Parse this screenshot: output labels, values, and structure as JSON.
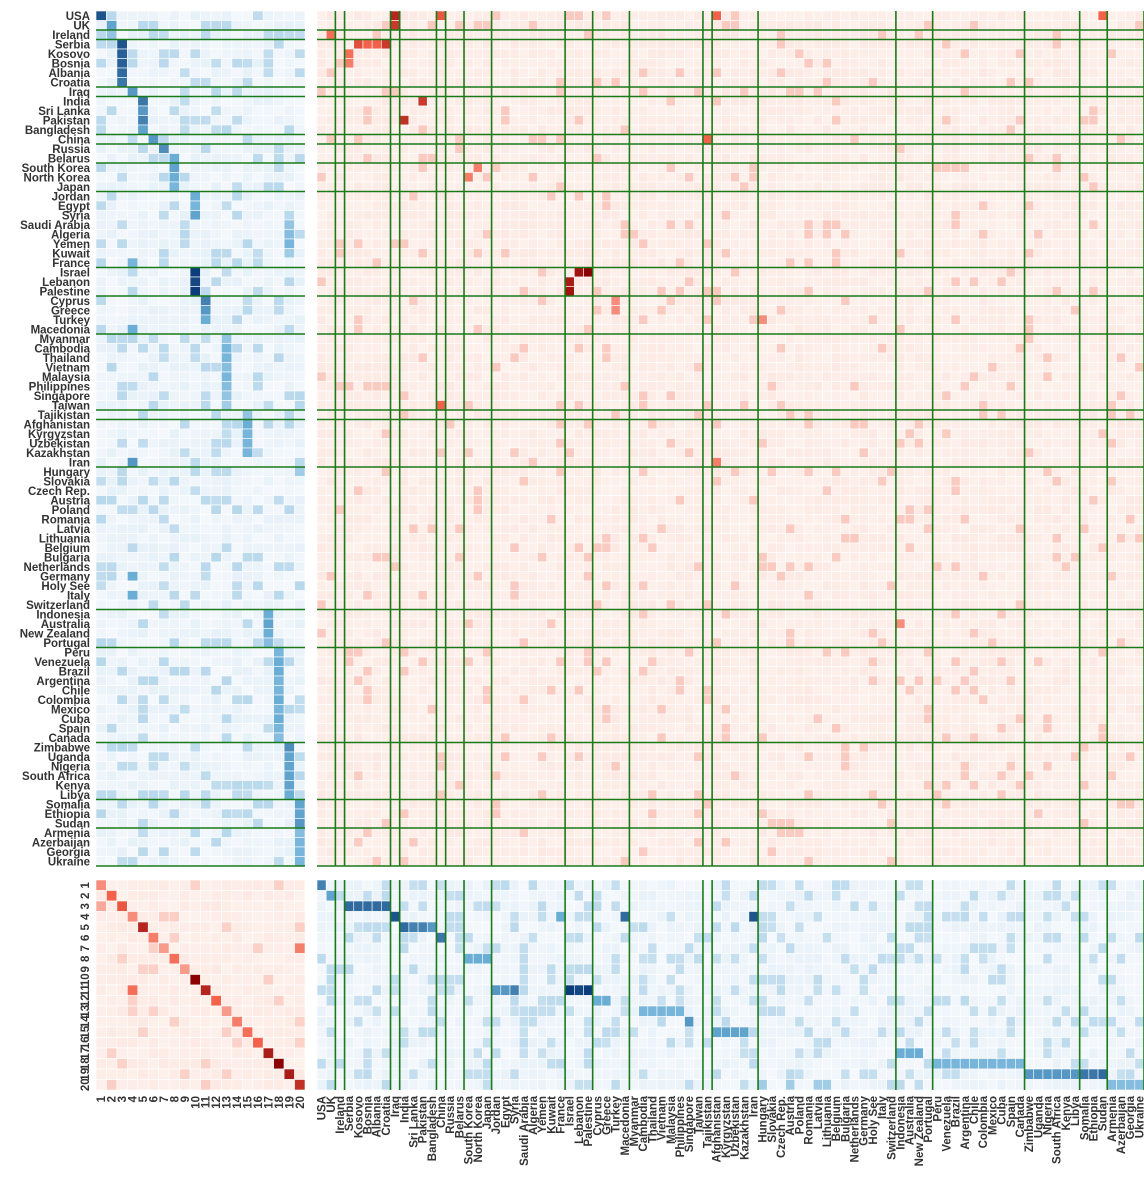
{
  "chart_data": {
    "type": "heatmap",
    "title": "",
    "countries": [
      "USA",
      "UK",
      "Ireland",
      "Serbia",
      "Kosovo",
      "Bosnia",
      "Albania",
      "Croatia",
      "Iraq",
      "India",
      "Sri Lanka",
      "Pakistan",
      "Bangladesh",
      "China",
      "Russia",
      "Belarus",
      "South Korea",
      "North Korea",
      "Japan",
      "Jordan",
      "Egypt",
      "Syria",
      "Saudi Arabia",
      "Algeria",
      "Yemen",
      "Kuwait",
      "France",
      "Israel",
      "Lebanon",
      "Palestine",
      "Cyprus",
      "Greece",
      "Turkey",
      "Macedonia",
      "Myanmar",
      "Cambodia",
      "Thailand",
      "Vietnam",
      "Malaysia",
      "Philippines",
      "Singapore",
      "Taiwan",
      "Tajikistan",
      "Afghanistan",
      "Kyrgyzstan",
      "Uzbekistan",
      "Kazakhstan",
      "Iran",
      "Hungary",
      "Slovakia",
      "Czech Rep.",
      "Austria",
      "Poland",
      "Romania",
      "Latvia",
      "Lithuania",
      "Belgium",
      "Bulgaria",
      "Netherlands",
      "Germany",
      "Holy See",
      "Italy",
      "Switzerland",
      "Indonesia",
      "Australia",
      "New Zealand",
      "Portugal",
      "Peru",
      "Venezuela",
      "Brazil",
      "Argentina",
      "Chile",
      "Colombia",
      "Mexico",
      "Cuba",
      "Spain",
      "Canada",
      "Zimbabwe",
      "Uganda",
      "Nigeria",
      "South Africa",
      "Kenya",
      "Libya",
      "Somalia",
      "Ethiopia",
      "Sudan",
      "Armenia",
      "Azerbaijan",
      "Georgia",
      "Ukraine"
    ],
    "topics": [
      "1",
      "2",
      "3",
      "4",
      "5",
      "6",
      "7",
      "8",
      "9",
      "10",
      "11",
      "12",
      "13",
      "14",
      "15",
      "16",
      "17",
      "18",
      "19",
      "20"
    ],
    "group_boundaries": [
      2,
      3,
      8,
      9,
      13,
      14,
      16,
      19,
      27,
      30,
      34,
      42,
      43,
      48,
      63,
      67,
      77,
      83,
      86,
      90
    ],
    "country_topic": [
      {
        "row": "USA",
        "col": "1",
        "value": 0.9
      },
      {
        "row": "UK",
        "col": "2",
        "value": 0.55
      },
      {
        "row": "Ireland",
        "col": "2",
        "value": 0.35
      },
      {
        "row": "Serbia",
        "col": "3",
        "value": 0.9
      },
      {
        "row": "Kosovo",
        "col": "3",
        "value": 0.85
      },
      {
        "row": "Bosnia",
        "col": "3",
        "value": 0.85
      },
      {
        "row": "Albania",
        "col": "3",
        "value": 0.8
      },
      {
        "row": "Croatia",
        "col": "3",
        "value": 0.75
      },
      {
        "row": "Iraq",
        "col": "4",
        "value": 0.6
      },
      {
        "row": "India",
        "col": "5",
        "value": 0.75
      },
      {
        "row": "Sri Lanka",
        "col": "5",
        "value": 0.6
      },
      {
        "row": "Pakistan",
        "col": "5",
        "value": 0.7
      },
      {
        "row": "Bangladesh",
        "col": "5",
        "value": 0.55
      },
      {
        "row": "China",
        "col": "6",
        "value": 0.6
      },
      {
        "row": "Russia",
        "col": "7",
        "value": 0.65
      },
      {
        "row": "Belarus",
        "col": "8",
        "value": 0.5
      },
      {
        "row": "South Korea",
        "col": "8",
        "value": 0.55
      },
      {
        "row": "North Korea",
        "col": "8",
        "value": 0.5
      },
      {
        "row": "Japan",
        "col": "8",
        "value": 0.45
      },
      {
        "row": "Jordan",
        "col": "10",
        "value": 0.5
      },
      {
        "row": "Egypt",
        "col": "10",
        "value": 0.45
      },
      {
        "row": "Syria",
        "col": "10",
        "value": 0.55
      },
      {
        "row": "Saudi Arabia",
        "col": "19",
        "value": 0.35
      },
      {
        "row": "Algeria",
        "col": "19",
        "value": 0.4
      },
      {
        "row": "Yemen",
        "col": "19",
        "value": 0.45
      },
      {
        "row": "Kuwait",
        "col": "19",
        "value": 0.3
      },
      {
        "row": "France",
        "col": "4",
        "value": 0.45
      },
      {
        "row": "Israel",
        "col": "10",
        "value": 1.0
      },
      {
        "row": "Lebanon",
        "col": "10",
        "value": 0.95
      },
      {
        "row": "Palestine",
        "col": "10",
        "value": 1.0
      },
      {
        "row": "Cyprus",
        "col": "11",
        "value": 0.7
      },
      {
        "row": "Greece",
        "col": "11",
        "value": 0.6
      },
      {
        "row": "Turkey",
        "col": "11",
        "value": 0.5
      },
      {
        "row": "Macedonia",
        "col": "4",
        "value": 0.5
      },
      {
        "row": "Myanmar",
        "col": "13",
        "value": 0.35
      },
      {
        "row": "Cambodia",
        "col": "13",
        "value": 0.45
      },
      {
        "row": "Thailand",
        "col": "13",
        "value": 0.45
      },
      {
        "row": "Vietnam",
        "col": "13",
        "value": 0.4
      },
      {
        "row": "Malaysia",
        "col": "13",
        "value": 0.45
      },
      {
        "row": "Philippines",
        "col": "13",
        "value": 0.4
      },
      {
        "row": "Singapore",
        "col": "13",
        "value": 0.35
      },
      {
        "row": "Taiwan",
        "col": "13",
        "value": 0.3
      },
      {
        "row": "Tajikistan",
        "col": "15",
        "value": 0.35
      },
      {
        "row": "Afghanistan",
        "col": "15",
        "value": 0.5
      },
      {
        "row": "Kyrgyzstan",
        "col": "15",
        "value": 0.45
      },
      {
        "row": "Uzbekistan",
        "col": "15",
        "value": 0.45
      },
      {
        "row": "Kazakhstan",
        "col": "15",
        "value": 0.45
      },
      {
        "row": "Iran",
        "col": "4",
        "value": 0.6
      },
      {
        "row": "Hungary",
        "col": "20",
        "value": 0.3
      },
      {
        "row": "Germany",
        "col": "4",
        "value": 0.5
      },
      {
        "row": "Italy",
        "col": "4",
        "value": 0.5
      },
      {
        "row": "Indonesia",
        "col": "17",
        "value": 0.5
      },
      {
        "row": "Australia",
        "col": "17",
        "value": 0.55
      },
      {
        "row": "New Zealand",
        "col": "17",
        "value": 0.5
      },
      {
        "row": "Portugal",
        "col": "17",
        "value": 0.4
      },
      {
        "row": "Peru",
        "col": "18",
        "value": 0.45
      },
      {
        "row": "Venezuela",
        "col": "18",
        "value": 0.5
      },
      {
        "row": "Brazil",
        "col": "18",
        "value": 0.5
      },
      {
        "row": "Argentina",
        "col": "18",
        "value": 0.45
      },
      {
        "row": "Chile",
        "col": "18",
        "value": 0.45
      },
      {
        "row": "Colombia",
        "col": "18",
        "value": 0.5
      },
      {
        "row": "Mexico",
        "col": "18",
        "value": 0.45
      },
      {
        "row": "Cuba",
        "col": "18",
        "value": 0.5
      },
      {
        "row": "Spain",
        "col": "18",
        "value": 0.45
      },
      {
        "row": "Canada",
        "col": "18",
        "value": 0.4
      },
      {
        "row": "Zimbabwe",
        "col": "19",
        "value": 0.65
      },
      {
        "row": "Uganda",
        "col": "19",
        "value": 0.55
      },
      {
        "row": "Nigeria",
        "col": "19",
        "value": 0.55
      },
      {
        "row": "South Africa",
        "col": "19",
        "value": 0.55
      },
      {
        "row": "Kenya",
        "col": "19",
        "value": 0.55
      },
      {
        "row": "Libya",
        "col": "19",
        "value": 0.5
      },
      {
        "row": "Somalia",
        "col": "20",
        "value": 0.55
      },
      {
        "row": "Ethiopia",
        "col": "20",
        "value": 0.55
      },
      {
        "row": "Sudan",
        "col": "20",
        "value": 0.6
      },
      {
        "row": "Armenia",
        "col": "20",
        "value": 0.4
      },
      {
        "row": "Azerbaijan",
        "col": "20",
        "value": 0.45
      },
      {
        "row": "Georgia",
        "col": "20",
        "value": 0.45
      },
      {
        "row": "Ukraine",
        "col": "20",
        "value": 0.45
      }
    ],
    "country_country": [
      {
        "row": "USA",
        "col": "Iraq",
        "value": 0.8
      },
      {
        "row": "USA",
        "col": "China",
        "value": 0.55
      },
      {
        "row": "USA",
        "col": "Afghanistan",
        "value": 0.5
      },
      {
        "row": "USA",
        "col": "Sudan",
        "value": 0.5
      },
      {
        "row": "UK",
        "col": "Iraq",
        "value": 0.7
      },
      {
        "row": "Ireland",
        "col": "UK",
        "value": 0.45
      },
      {
        "row": "Serbia",
        "col": "Kosovo",
        "value": 0.6
      },
      {
        "row": "Serbia",
        "col": "Bosnia",
        "value": 0.5
      },
      {
        "row": "Serbia",
        "col": "Albania",
        "value": 0.5
      },
      {
        "row": "Serbia",
        "col": "Croatia",
        "value": 0.7
      },
      {
        "row": "Kosovo",
        "col": "Serbia",
        "value": 0.45
      },
      {
        "row": "Bosnia",
        "col": "Serbia",
        "value": 0.4
      },
      {
        "row": "India",
        "col": "Pakistan",
        "value": 0.7
      },
      {
        "row": "Pakistan",
        "col": "India",
        "value": 0.75
      },
      {
        "row": "China",
        "col": "Tajikistan",
        "value": 0.5
      },
      {
        "row": "Taiwan",
        "col": "China",
        "value": 0.5
      },
      {
        "row": "South Korea",
        "col": "North Korea",
        "value": 0.4
      },
      {
        "row": "North Korea",
        "col": "South Korea",
        "value": 0.4
      },
      {
        "row": "Israel",
        "col": "Lebanon",
        "value": 0.9
      },
      {
        "row": "Israel",
        "col": "Palestine",
        "value": 1.0
      },
      {
        "row": "Lebanon",
        "col": "Israel",
        "value": 0.85
      },
      {
        "row": "Palestine",
        "col": "Israel",
        "value": 0.9
      },
      {
        "row": "Cyprus",
        "col": "Turkey",
        "value": 0.35
      },
      {
        "row": "Greece",
        "col": "Turkey",
        "value": 0.35
      },
      {
        "row": "Turkey",
        "col": "Hungary",
        "value": 0.35
      },
      {
        "row": "Iran",
        "col": "Afghanistan",
        "value": 0.4
      },
      {
        "row": "Australia",
        "col": "Indonesia",
        "value": 0.35
      }
    ],
    "topic_topic": [
      {
        "row": "1",
        "col": "1",
        "value": 0.35
      },
      {
        "row": "2",
        "col": "2",
        "value": 0.5
      },
      {
        "row": "3",
        "col": "3",
        "value": 0.55
      },
      {
        "row": "3",
        "col": "1",
        "value": 0.25
      },
      {
        "row": "4",
        "col": "4",
        "value": 0.35
      },
      {
        "row": "5",
        "col": "5",
        "value": 0.8
      },
      {
        "row": "6",
        "col": "6",
        "value": 0.4
      },
      {
        "row": "7",
        "col": "7",
        "value": 0.3
      },
      {
        "row": "8",
        "col": "8",
        "value": 0.45
      },
      {
        "row": "9",
        "col": "9",
        "value": 0.3
      },
      {
        "row": "10",
        "col": "10",
        "value": 1.0
      },
      {
        "row": "11",
        "col": "11",
        "value": 0.8
      },
      {
        "row": "11",
        "col": "4",
        "value": 0.45
      },
      {
        "row": "12",
        "col": "12",
        "value": 0.5
      },
      {
        "row": "13",
        "col": "13",
        "value": 0.3
      },
      {
        "row": "14",
        "col": "14",
        "value": 0.4
      },
      {
        "row": "15",
        "col": "15",
        "value": 0.45
      },
      {
        "row": "16",
        "col": "16",
        "value": 0.5
      },
      {
        "row": "17",
        "col": "17",
        "value": 0.85
      },
      {
        "row": "18",
        "col": "18",
        "value": 1.0
      },
      {
        "row": "19",
        "col": "19",
        "value": 0.85
      },
      {
        "row": "20",
        "col": "20",
        "value": 0.75
      },
      {
        "row": "7",
        "col": "20",
        "value": 0.4
      }
    ],
    "topic_country": [
      {
        "row": "1",
        "col": "USA",
        "value": 0.7
      },
      {
        "row": "2",
        "col": "UK",
        "value": 0.55
      },
      {
        "row": "3",
        "col": "Serbia",
        "value": 0.8
      },
      {
        "row": "3",
        "col": "Kosovo",
        "value": 0.8
      },
      {
        "row": "3",
        "col": "Bosnia",
        "value": 0.8
      },
      {
        "row": "3",
        "col": "Albania",
        "value": 0.8
      },
      {
        "row": "3",
        "col": "Croatia",
        "value": 0.8
      },
      {
        "row": "4",
        "col": "Iraq",
        "value": 0.9
      },
      {
        "row": "4",
        "col": "Iran",
        "value": 0.9
      },
      {
        "row": "4",
        "col": "France",
        "value": 0.5
      },
      {
        "row": "4",
        "col": "Macedonia",
        "value": 0.8
      },
      {
        "row": "5",
        "col": "India",
        "value": 0.8
      },
      {
        "row": "5",
        "col": "Sri Lanka",
        "value": 0.7
      },
      {
        "row": "5",
        "col": "Pakistan",
        "value": 0.7
      },
      {
        "row": "5",
        "col": "Bangladesh",
        "value": 0.6
      },
      {
        "row": "6",
        "col": "China",
        "value": 0.75
      },
      {
        "row": "8",
        "col": "South Korea",
        "value": 0.5
      },
      {
        "row": "8",
        "col": "North Korea",
        "value": 0.5
      },
      {
        "row": "8",
        "col": "Japan",
        "value": 0.5
      },
      {
        "row": "11",
        "col": "Jordan",
        "value": 0.6
      },
      {
        "row": "11",
        "col": "Egypt",
        "value": 0.6
      },
      {
        "row": "11",
        "col": "Syria",
        "value": 0.7
      },
      {
        "row": "11",
        "col": "Israel",
        "value": 1.0
      },
      {
        "row": "11",
        "col": "Lebanon",
        "value": 0.95
      },
      {
        "row": "11",
        "col": "Palestine",
        "value": 1.0
      },
      {
        "row": "12",
        "col": "Cyprus",
        "value": 0.5
      },
      {
        "row": "12",
        "col": "Greece",
        "value": 0.5
      },
      {
        "row": "13",
        "col": "Cambodia",
        "value": 0.45
      },
      {
        "row": "13",
        "col": "Thailand",
        "value": 0.45
      },
      {
        "row": "13",
        "col": "Vietnam",
        "value": 0.45
      },
      {
        "row": "13",
        "col": "Malaysia",
        "value": 0.45
      },
      {
        "row": "13",
        "col": "Philippines",
        "value": 0.45
      },
      {
        "row": "14",
        "col": "Singapore",
        "value": 0.6
      },
      {
        "row": "15",
        "col": "Afghanistan",
        "value": 0.55
      },
      {
        "row": "15",
        "col": "Kyrgyzstan",
        "value": 0.55
      },
      {
        "row": "15",
        "col": "Uzbekistan",
        "value": 0.55
      },
      {
        "row": "15",
        "col": "Kazakhstan",
        "value": 0.55
      },
      {
        "row": "17",
        "col": "Indonesia",
        "value": 0.5
      },
      {
        "row": "17",
        "col": "Australia",
        "value": 0.5
      },
      {
        "row": "17",
        "col": "New Zealand",
        "value": 0.5
      },
      {
        "row": "18",
        "col": "Peru",
        "value": 0.45
      },
      {
        "row": "18",
        "col": "Venezuela",
        "value": 0.45
      },
      {
        "row": "18",
        "col": "Brazil",
        "value": 0.45
      },
      {
        "row": "18",
        "col": "Argentina",
        "value": 0.45
      },
      {
        "row": "18",
        "col": "Chile",
        "value": 0.45
      },
      {
        "row": "18",
        "col": "Colombia",
        "value": 0.45
      },
      {
        "row": "18",
        "col": "Mexico",
        "value": 0.45
      },
      {
        "row": "18",
        "col": "Cuba",
        "value": 0.45
      },
      {
        "row": "18",
        "col": "Spain",
        "value": 0.45
      },
      {
        "row": "18",
        "col": "Canada",
        "value": 0.45
      },
      {
        "row": "19",
        "col": "Zimbabwe",
        "value": 0.6
      },
      {
        "row": "19",
        "col": "Uganda",
        "value": 0.6
      },
      {
        "row": "19",
        "col": "Nigeria",
        "value": 0.6
      },
      {
        "row": "19",
        "col": "South Africa",
        "value": 0.6
      },
      {
        "row": "19",
        "col": "Kenya",
        "value": 0.6
      },
      {
        "row": "19",
        "col": "Libya",
        "value": 0.6
      },
      {
        "row": "19",
        "col": "Somalia",
        "value": 0.75
      },
      {
        "row": "19",
        "col": "Ethiopia",
        "value": 0.75
      },
      {
        "row": "19",
        "col": "Sudan",
        "value": 0.8
      },
      {
        "row": "20",
        "col": "Armenia",
        "value": 0.4
      },
      {
        "row": "20",
        "col": "Azerbaijan",
        "value": 0.4
      },
      {
        "row": "20",
        "col": "Georgia",
        "value": 0.4
      },
      {
        "row": "20",
        "col": "Ukraine",
        "value": 0.4
      },
      {
        "row": "20",
        "col": "Hungary",
        "value": 0.3
      },
      {
        "row": "20",
        "col": "Austria",
        "value": 0.3
      },
      {
        "row": "20",
        "col": "Latvia",
        "value": 0.3
      },
      {
        "row": "20",
        "col": "Lithuania",
        "value": 0.3
      }
    ],
    "palette": {
      "blue_base": "#f4f8fc",
      "blue_max": "#0b3d7a",
      "red_base": "#fdf1ec",
      "red_max": "#8b0000",
      "separator": "#1a7a1a"
    },
    "grid": true,
    "legend": "none"
  }
}
